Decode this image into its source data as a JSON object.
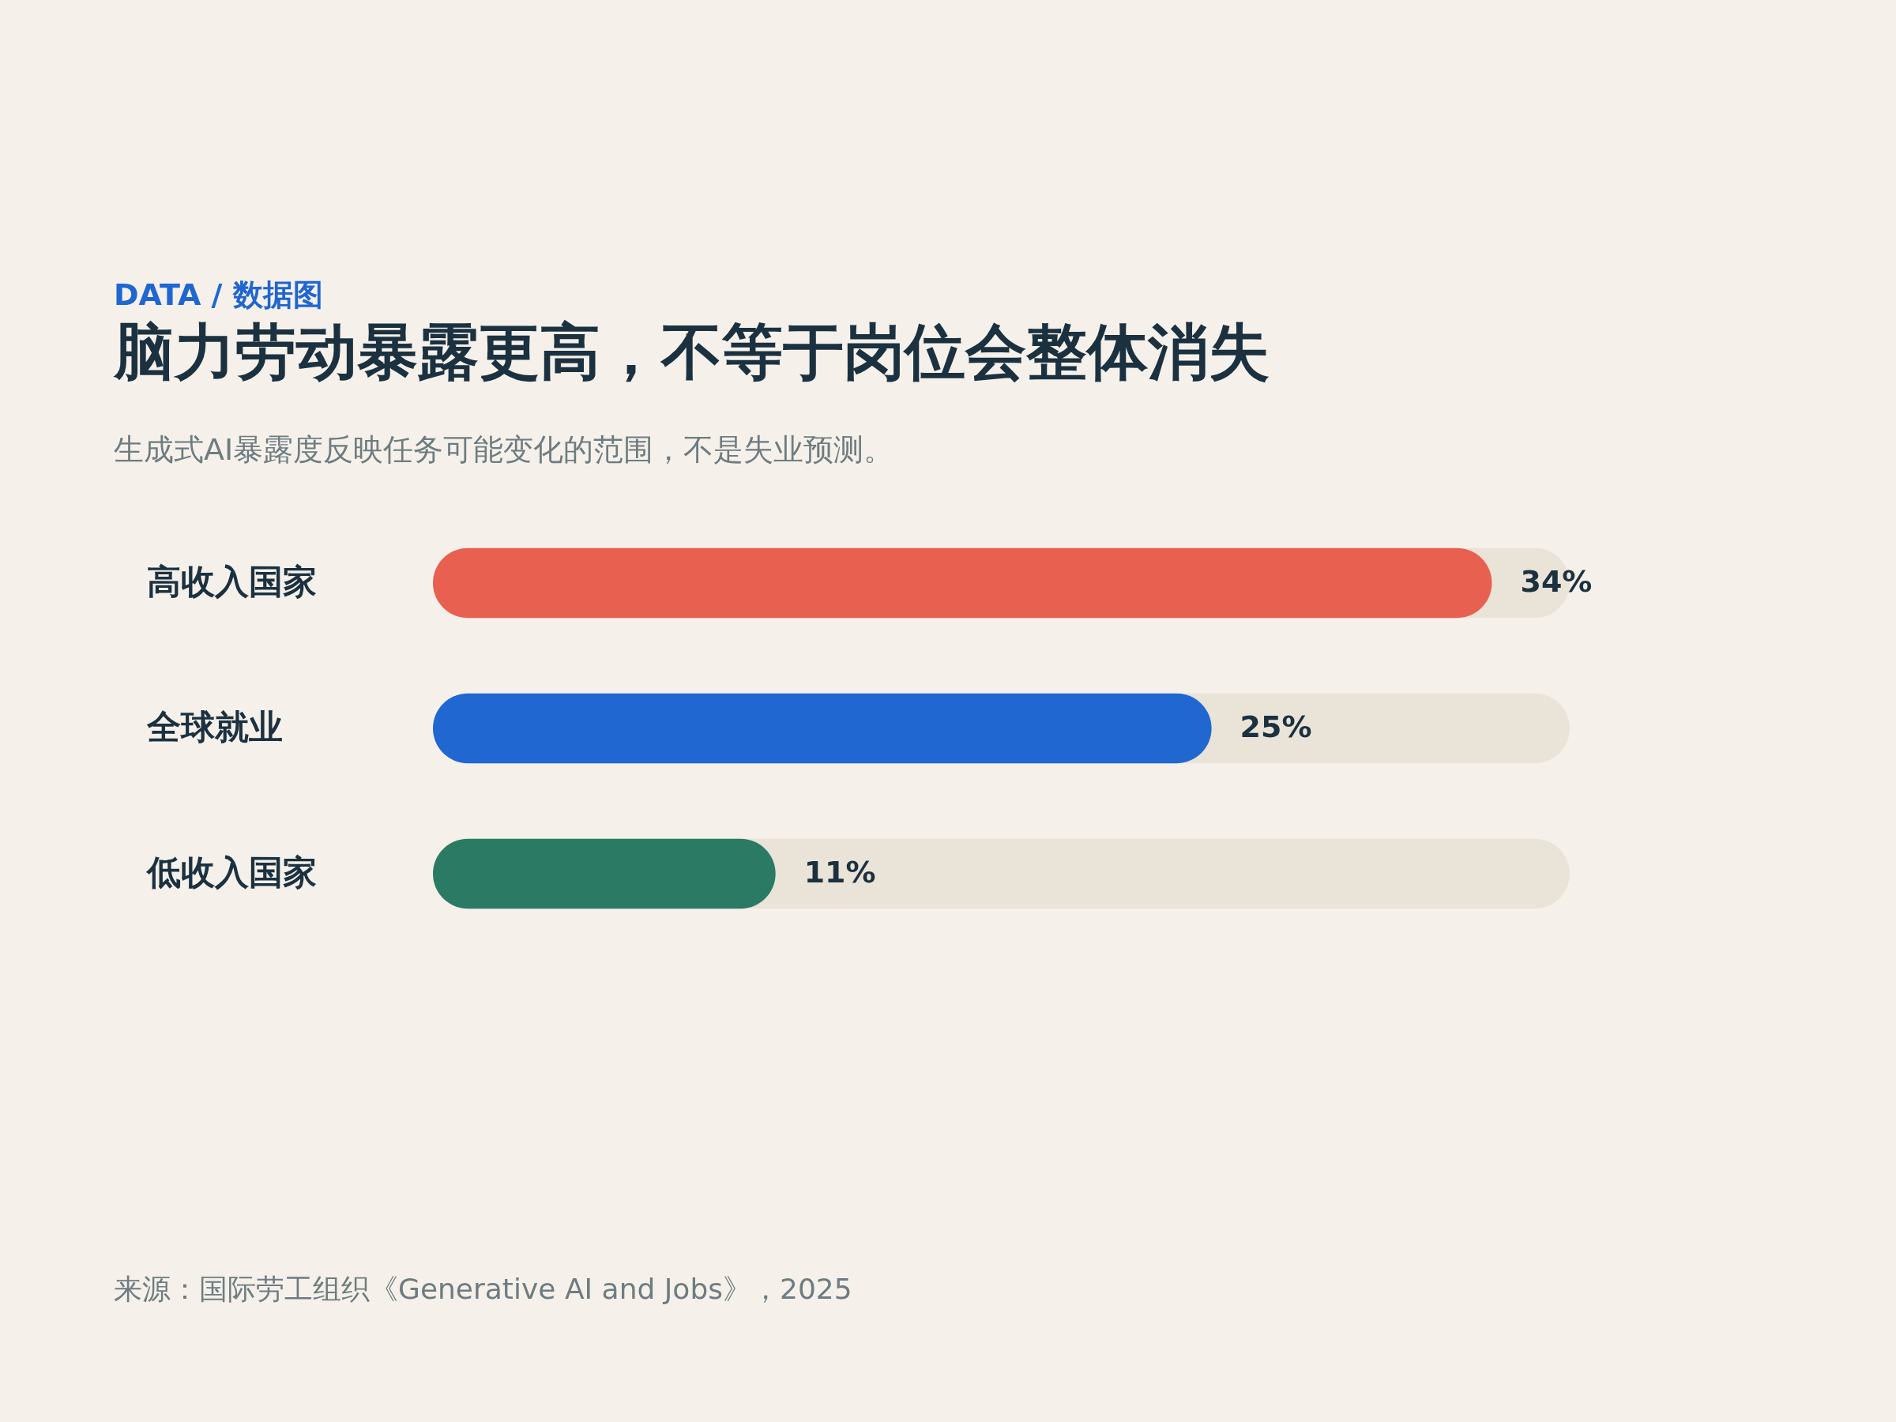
{
  "chart_data": {
    "type": "bar",
    "orientation": "horizontal",
    "title": "脑力劳动暴露更高，不等于岗位会整体消失",
    "subtitle": "生成式AI暴露度反映任务可能变化的范围，不是失业预测。",
    "annotations": [
      "DATA / 数据图",
      "来源：国际劳工组织《Generative AI and Jobs》，2025"
    ],
    "categories": [
      "高收入国家",
      "全球就业",
      "低收入国家"
    ],
    "values": [
      34,
      25,
      11
    ],
    "colors": [
      "#e8604f",
      "#2067d1",
      "#2b7a64"
    ],
    "value_labels": [
      "34%",
      "25%",
      "11%"
    ],
    "xlim": [
      0,
      36.5
    ],
    "tick_labels": "y"
  }
}
